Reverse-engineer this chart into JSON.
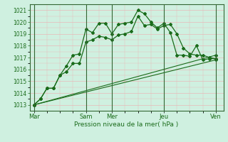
{
  "title": "",
  "xlabel": "Pression niveau de la mer( hPa )",
  "ylabel": "",
  "bg_color": "#cff0e0",
  "grid_color": "#e8b8b8",
  "line_color": "#1a6b1a",
  "spine_color": "#336633",
  "ylim": [
    1012.5,
    1021.5
  ],
  "yticks": [
    1013,
    1014,
    1015,
    1016,
    1017,
    1018,
    1019,
    1020,
    1021
  ],
  "day_positions": [
    0,
    48,
    72,
    120,
    168
  ],
  "day_labels": [
    "Mar",
    "Sam",
    "Mer",
    "Jeu",
    "Ven"
  ],
  "xlim": [
    -4,
    175
  ],
  "series1_x": [
    0,
    6,
    12,
    18,
    24,
    30,
    36,
    42,
    48,
    54,
    60,
    66,
    72,
    78,
    84,
    90,
    96,
    102,
    108,
    114,
    120,
    126,
    132,
    138,
    144,
    150,
    156,
    162,
    168
  ],
  "series1_y": [
    1013.0,
    1013.5,
    1014.4,
    1014.4,
    1015.5,
    1016.3,
    1017.2,
    1017.3,
    1019.4,
    1019.1,
    1019.9,
    1019.9,
    1019.0,
    1019.8,
    1019.9,
    1020.0,
    1021.0,
    1020.7,
    1020.0,
    1019.5,
    1019.9,
    1019.1,
    1017.2,
    1017.2,
    1017.1,
    1018.0,
    1016.8,
    1016.9,
    1016.9
  ],
  "series2_x": [
    0,
    6,
    12,
    18,
    24,
    30,
    36,
    42,
    48,
    54,
    60,
    66,
    72,
    78,
    84,
    90,
    96,
    102,
    108,
    114,
    120,
    126,
    132,
    138,
    144,
    150,
    156,
    162,
    168
  ],
  "series2_y": [
    1013.0,
    1013.5,
    1014.4,
    1014.4,
    1015.5,
    1015.8,
    1016.5,
    1016.5,
    1018.3,
    1018.5,
    1018.8,
    1018.7,
    1018.5,
    1018.9,
    1019.0,
    1019.2,
    1020.5,
    1019.7,
    1019.8,
    1019.4,
    1019.7,
    1019.8,
    1019.0,
    1017.8,
    1017.3,
    1017.2,
    1017.2,
    1017.0,
    1016.9
  ],
  "series3_x": [
    0,
    168
  ],
  "series3_y": [
    1013.0,
    1016.8
  ],
  "series4_x": [
    0,
    168
  ],
  "series4_y": [
    1013.0,
    1017.2
  ]
}
